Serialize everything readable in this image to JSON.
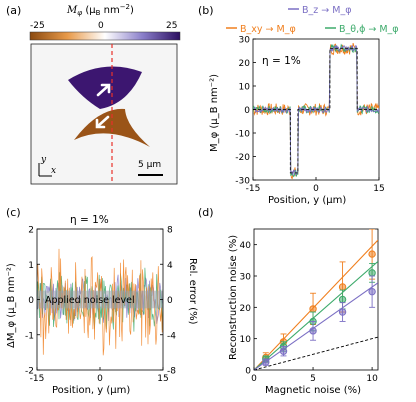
{
  "panel_labels": [
    "(a)",
    "(b)",
    "(c)",
    "(d)"
  ],
  "colors": {
    "bz": "#7B6FC4",
    "bxy": "#F07F1E",
    "btheta": "#3DAA6B",
    "brown": "#9A5418",
    "purple": "#3C1670",
    "cut": "#E8312A",
    "noise_band": "#9AA0AA"
  },
  "panel_a": {
    "colorbar_label": "M_φ (μ_B nm⁻²)",
    "colorbar_label_parts": {
      "sym": "M",
      "sub": "φ",
      "unit": "(μ",
      "unit_sub": "B",
      "unit_rest": " nm",
      "exp": "−2",
      "close": ")"
    },
    "colorbar_ticks": [
      "-25",
      "0",
      "25"
    ],
    "axis_y": "y",
    "axis_x": "x",
    "scalebar": "5 μm",
    "arrow_icons": [
      "arrow-up-right",
      "arrow-down-left"
    ]
  },
  "chart_data": [
    {
      "panel": "b",
      "type": "line",
      "annotation": "η = 1%",
      "legend": [
        {
          "label": "B_z → M_φ",
          "color": "#7B6FC4"
        },
        {
          "label": "B_xy → M_φ",
          "color": "#F07F1E"
        },
        {
          "label": "B_θ,ϕ → M_φ",
          "color": "#3DAA6B"
        }
      ],
      "xlabel": "Position, y (μm)",
      "ylabel": "M_φ (μ_B nm⁻²)",
      "xlim": [
        -15,
        15
      ],
      "ylim": [
        -30,
        30
      ],
      "xticks": [
        "-15",
        "0",
        "15"
      ],
      "yticks": [
        "30",
        "20",
        "10",
        "0",
        "-10",
        "-20",
        "-30"
      ],
      "profile": {
        "x": [
          -15,
          -6.1,
          -6.1,
          -4.3,
          -4.3,
          3.3,
          3.3,
          9.8,
          9.8,
          15
        ],
        "y": [
          0,
          0,
          -27,
          -27,
          0,
          0,
          26,
          26,
          0,
          0
        ]
      },
      "noise_amplitude": {
        "bz": 1.2,
        "bxy": 2.6,
        "btheta": 1.6
      }
    },
    {
      "panel": "c",
      "type": "line",
      "annotation": "η = 1%",
      "band_label": "Applied noise level",
      "xlabel": "Position, y (μm)",
      "ylabel": "ΔM_φ (μ_B nm⁻²)",
      "ylabel_right": "Rel. error (%)",
      "xlim": [
        -15,
        15
      ],
      "ylim": [
        -2,
        2
      ],
      "xticks": [
        "-15",
        "0",
        "15"
      ],
      "yticks_left": [
        "2",
        "1",
        "0",
        "-1",
        "-2"
      ],
      "yticks_right": [
        "8",
        "4",
        "0",
        "-4",
        "-8"
      ],
      "band": [
        -0.25,
        0.25
      ]
    },
    {
      "panel": "d",
      "type": "scatter",
      "xlabel": "Magnetic noise (%)",
      "ylabel": "Reconstruction noise (%)",
      "xlim": [
        0,
        10.5
      ],
      "ylim": [
        0,
        45
      ],
      "xticks": [
        "0",
        "5",
        "10"
      ],
      "yticks": [
        "0",
        "10",
        "20",
        "30",
        "40"
      ],
      "x": [
        1,
        2.5,
        5,
        7.5,
        10
      ],
      "series": [
        {
          "key": "bxy",
          "values": [
            4,
            9,
            19.5,
            26.5,
            37
          ],
          "err": [
            1.5,
            2.5,
            5,
            8,
            8
          ],
          "slope": 3.95
        },
        {
          "key": "btheta",
          "values": [
            3.5,
            7.5,
            15.5,
            22.5,
            31
          ],
          "err": [
            1,
            1.5,
            3,
            3,
            3
          ],
          "slope": 3.3
        },
        {
          "key": "bz",
          "values": [
            2.5,
            6,
            12.5,
            18.5,
            25
          ],
          "err": [
            1,
            1.5,
            3,
            3,
            5
          ],
          "slope": 2.65
        }
      ],
      "reference": {
        "x": [
          0,
          10.5
        ],
        "y": [
          0,
          10.5
        ]
      }
    }
  ]
}
